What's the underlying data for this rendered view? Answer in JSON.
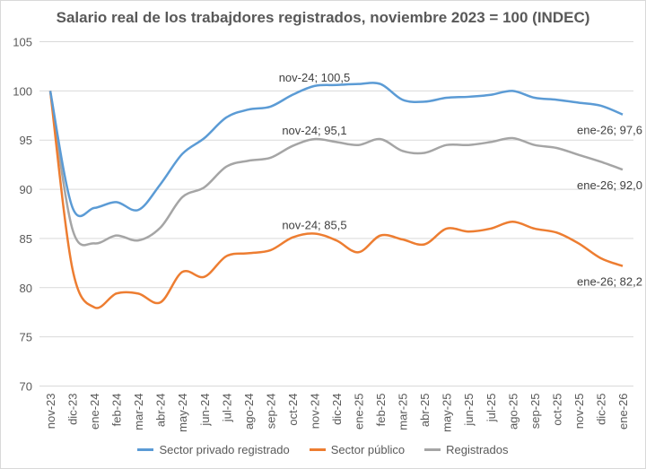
{
  "chart_data": {
    "type": "line",
    "title": "Salario real de los trabajdores registrados, noviembre 2023 = 100 (INDEC)",
    "xlabel": "",
    "ylabel": "",
    "ylim": [
      70,
      105
    ],
    "yticks": [
      "70",
      "75",
      "80",
      "85",
      "90",
      "95",
      "100",
      "105"
    ],
    "grid": true,
    "legend_position": "bottom",
    "categories": [
      "nov-23",
      "dic-23",
      "ene-24",
      "feb-24",
      "mar-24",
      "abr-24",
      "may-24",
      "jun-24",
      "jul-24",
      "ago-24",
      "sep-24",
      "oct-24",
      "nov-24",
      "dic-24",
      "ene-25",
      "feb-25",
      "mar-25",
      "abr-25",
      "may-25",
      "jun-25",
      "jul-25",
      "ago-25",
      "sep-25",
      "oct-25",
      "nov-25",
      "dic-25",
      "ene-26"
    ],
    "series": [
      {
        "name": "Sector privado registrado",
        "color": "#5b9bd5",
        "values": [
          100,
          88.2,
          88.1,
          88.7,
          87.9,
          90.5,
          93.6,
          95.2,
          97.3,
          98.1,
          98.4,
          99.6,
          100.5,
          100.6,
          100.7,
          100.7,
          99.1,
          98.9,
          99.3,
          99.4,
          99.6,
          100.0,
          99.3,
          99.1,
          98.8,
          98.5,
          97.6
        ],
        "labels": [
          {
            "index": 12,
            "text": "nov-24; 100,5",
            "pos": "above"
          },
          {
            "index": 26,
            "text": "ene-26; 97,6",
            "pos": "below"
          }
        ]
      },
      {
        "name": "Sector público",
        "color": "#ed7d31",
        "values": [
          100,
          82.0,
          78.0,
          79.4,
          79.4,
          78.5,
          81.6,
          81.1,
          83.2,
          83.5,
          83.8,
          85.1,
          85.5,
          84.8,
          83.6,
          85.3,
          84.9,
          84.4,
          86.0,
          85.7,
          86.0,
          86.7,
          86.0,
          85.6,
          84.5,
          83.0,
          82.2
        ],
        "labels": [
          {
            "index": 12,
            "text": "nov-24; 85,5",
            "pos": "above"
          },
          {
            "index": 26,
            "text": "ene-26; 82,2",
            "pos": "below"
          }
        ]
      },
      {
        "name": "Registrados",
        "color": "#a5a5a5",
        "values": [
          100,
          86.0,
          84.5,
          85.3,
          84.8,
          86.1,
          89.2,
          90.2,
          92.3,
          92.9,
          93.2,
          94.4,
          95.1,
          94.8,
          94.5,
          95.1,
          93.9,
          93.7,
          94.5,
          94.5,
          94.8,
          95.2,
          94.5,
          94.2,
          93.5,
          92.8,
          92.0
        ],
        "labels": [
          {
            "index": 12,
            "text": "nov-24; 95,1",
            "pos": "above"
          },
          {
            "index": 26,
            "text": "ene-26; 92,0",
            "pos": "below"
          }
        ]
      }
    ]
  }
}
